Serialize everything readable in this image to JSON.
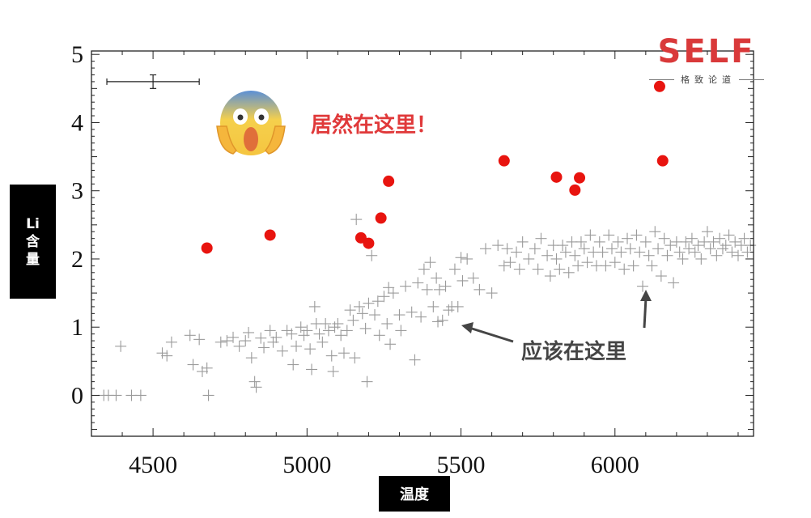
{
  "colors": {
    "highlight_points": "#e8140f",
    "normal_points": "#9a9a9a",
    "annotation_red": "#e0393a",
    "annotation_gray": "#454545",
    "logo": "#d9393a"
  },
  "logo": {
    "main": "SELF",
    "sub": "格致论道"
  },
  "annotations": {
    "found_here": "居然在这里！",
    "should_be_here": "应该在这里"
  },
  "emoji_icon": "face-screaming-in-fear-icon",
  "chart_data": {
    "type": "scatter",
    "xlabel": "温度",
    "ylabel": "Li\n含\n量",
    "xlim": [
      4300,
      6450
    ],
    "ylim": [
      -0.6,
      5.05
    ],
    "xticks": [
      4500,
      5000,
      5500,
      6000
    ],
    "yticks": [
      0,
      1,
      2,
      3,
      4,
      5
    ],
    "grid": false,
    "error_bar": {
      "x": 4500,
      "y": 4.6,
      "x_err": 150,
      "y_err": 0.1
    },
    "series": [
      {
        "marker": "circle",
        "points": [
          [
            4675,
            2.16
          ],
          [
            4880,
            2.35
          ],
          [
            5175,
            2.31
          ],
          [
            5200,
            2.23
          ],
          [
            5240,
            2.6
          ],
          [
            5265,
            3.14
          ],
          [
            5640,
            3.44
          ],
          [
            5810,
            3.2
          ],
          [
            5870,
            3.01
          ],
          [
            5885,
            3.19
          ],
          [
            6145,
            4.53
          ],
          [
            6155,
            3.44
          ]
        ]
      },
      {
        "marker": "plus",
        "points": [
          [
            4340,
            0.0
          ],
          [
            4355,
            0.0
          ],
          [
            4380,
            0.0
          ],
          [
            4395,
            0.72
          ],
          [
            4430,
            0.0
          ],
          [
            4460,
            0.0
          ],
          [
            4530,
            0.62
          ],
          [
            4545,
            0.58
          ],
          [
            4560,
            0.78
          ],
          [
            4620,
            0.88
          ],
          [
            4630,
            0.45
          ],
          [
            4650,
            0.82
          ],
          [
            4660,
            0.35
          ],
          [
            4675,
            0.4
          ],
          [
            4680,
            0.0
          ],
          [
            4720,
            0.78
          ],
          [
            4740,
            0.8
          ],
          [
            4760,
            0.85
          ],
          [
            4780,
            0.72
          ],
          [
            4800,
            0.8
          ],
          [
            4810,
            0.92
          ],
          [
            4820,
            0.55
          ],
          [
            4830,
            0.2
          ],
          [
            4835,
            0.12
          ],
          [
            4850,
            0.84
          ],
          [
            4860,
            0.7
          ],
          [
            4880,
            0.95
          ],
          [
            4890,
            0.78
          ],
          [
            4900,
            0.85
          ],
          [
            4920,
            0.65
          ],
          [
            4935,
            0.95
          ],
          [
            4950,
            0.9
          ],
          [
            4955,
            0.45
          ],
          [
            4965,
            0.72
          ],
          [
            4980,
            1.0
          ],
          [
            4990,
            0.88
          ],
          [
            5000,
            0.95
          ],
          [
            5010,
            0.68
          ],
          [
            5015,
            0.38
          ],
          [
            5025,
            1.3
          ],
          [
            5030,
            1.05
          ],
          [
            5040,
            0.9
          ],
          [
            5050,
            0.78
          ],
          [
            5060,
            1.05
          ],
          [
            5070,
            0.95
          ],
          [
            5080,
            0.58
          ],
          [
            5085,
            0.35
          ],
          [
            5090,
            1.0
          ],
          [
            5100,
            1.05
          ],
          [
            5110,
            0.88
          ],
          [
            5120,
            0.62
          ],
          [
            5130,
            0.95
          ],
          [
            5140,
            1.25
          ],
          [
            5150,
            1.1
          ],
          [
            5155,
            0.55
          ],
          [
            5160,
            2.58
          ],
          [
            5170,
            1.3
          ],
          [
            5180,
            1.2
          ],
          [
            5190,
            0.98
          ],
          [
            5195,
            0.2
          ],
          [
            5200,
            1.35
          ],
          [
            5210,
            2.05
          ],
          [
            5220,
            1.18
          ],
          [
            5230,
            1.38
          ],
          [
            5235,
            0.88
          ],
          [
            5250,
            1.45
          ],
          [
            5260,
            1.05
          ],
          [
            5265,
            1.58
          ],
          [
            5270,
            0.75
          ],
          [
            5280,
            1.5
          ],
          [
            5300,
            1.18
          ],
          [
            5305,
            0.95
          ],
          [
            5320,
            1.6
          ],
          [
            5340,
            1.22
          ],
          [
            5350,
            0.52
          ],
          [
            5360,
            1.65
          ],
          [
            5370,
            1.15
          ],
          [
            5380,
            1.85
          ],
          [
            5390,
            1.55
          ],
          [
            5400,
            1.95
          ],
          [
            5410,
            1.3
          ],
          [
            5420,
            1.72
          ],
          [
            5425,
            1.08
          ],
          [
            5430,
            1.55
          ],
          [
            5440,
            1.1
          ],
          [
            5450,
            1.6
          ],
          [
            5460,
            1.25
          ],
          [
            5470,
            1.3
          ],
          [
            5480,
            1.85
          ],
          [
            5490,
            1.3
          ],
          [
            5500,
            2.02
          ],
          [
            5505,
            1.68
          ],
          [
            5520,
            2.0
          ],
          [
            5540,
            1.72
          ],
          [
            5560,
            1.55
          ],
          [
            5580,
            2.15
          ],
          [
            5600,
            1.5
          ],
          [
            5620,
            2.2
          ],
          [
            5640,
            1.9
          ],
          [
            5650,
            2.15
          ],
          [
            5660,
            1.95
          ],
          [
            5680,
            2.1
          ],
          [
            5690,
            1.85
          ],
          [
            5700,
            2.25
          ],
          [
            5720,
            2.0
          ],
          [
            5740,
            2.15
          ],
          [
            5750,
            1.85
          ],
          [
            5760,
            2.3
          ],
          [
            5780,
            2.05
          ],
          [
            5790,
            1.75
          ],
          [
            5800,
            2.2
          ],
          [
            5810,
            2.0
          ],
          [
            5820,
            1.85
          ],
          [
            5830,
            2.2
          ],
          [
            5840,
            2.1
          ],
          [
            5850,
            1.8
          ],
          [
            5860,
            2.25
          ],
          [
            5870,
            2.05
          ],
          [
            5880,
            1.9
          ],
          [
            5890,
            2.25
          ],
          [
            5900,
            2.15
          ],
          [
            5910,
            1.95
          ],
          [
            5920,
            2.35
          ],
          [
            5930,
            2.1
          ],
          [
            5940,
            1.9
          ],
          [
            5950,
            2.25
          ],
          [
            5960,
            2.1
          ],
          [
            5970,
            1.9
          ],
          [
            5980,
            2.35
          ],
          [
            5990,
            2.15
          ],
          [
            6000,
            1.95
          ],
          [
            6010,
            2.25
          ],
          [
            6020,
            2.1
          ],
          [
            6030,
            1.85
          ],
          [
            6040,
            2.3
          ],
          [
            6050,
            2.15
          ],
          [
            6060,
            1.9
          ],
          [
            6070,
            2.35
          ],
          [
            6080,
            2.1
          ],
          [
            6090,
            1.6
          ],
          [
            6100,
            2.25
          ],
          [
            6110,
            2.05
          ],
          [
            6120,
            1.9
          ],
          [
            6130,
            2.4
          ],
          [
            6140,
            2.15
          ],
          [
            6150,
            1.75
          ],
          [
            6160,
            2.3
          ],
          [
            6170,
            2.05
          ],
          [
            6180,
            2.2
          ],
          [
            6190,
            1.65
          ],
          [
            6200,
            2.25
          ],
          [
            6210,
            2.1
          ],
          [
            6220,
            2.0
          ],
          [
            6230,
            2.25
          ],
          [
            6240,
            2.15
          ],
          [
            6250,
            2.3
          ],
          [
            6260,
            2.1
          ],
          [
            6270,
            2.2
          ],
          [
            6280,
            2.0
          ],
          [
            6290,
            2.25
          ],
          [
            6300,
            2.4
          ],
          [
            6310,
            2.15
          ],
          [
            6320,
            2.25
          ],
          [
            6330,
            2.05
          ],
          [
            6340,
            2.3
          ],
          [
            6350,
            2.15
          ],
          [
            6360,
            2.2
          ],
          [
            6370,
            2.35
          ],
          [
            6380,
            2.1
          ],
          [
            6390,
            2.25
          ],
          [
            6400,
            2.05
          ],
          [
            6410,
            2.2
          ],
          [
            6420,
            2.3
          ],
          [
            6430,
            2.1
          ],
          [
            6440,
            2.2
          ]
        ]
      }
    ]
  }
}
